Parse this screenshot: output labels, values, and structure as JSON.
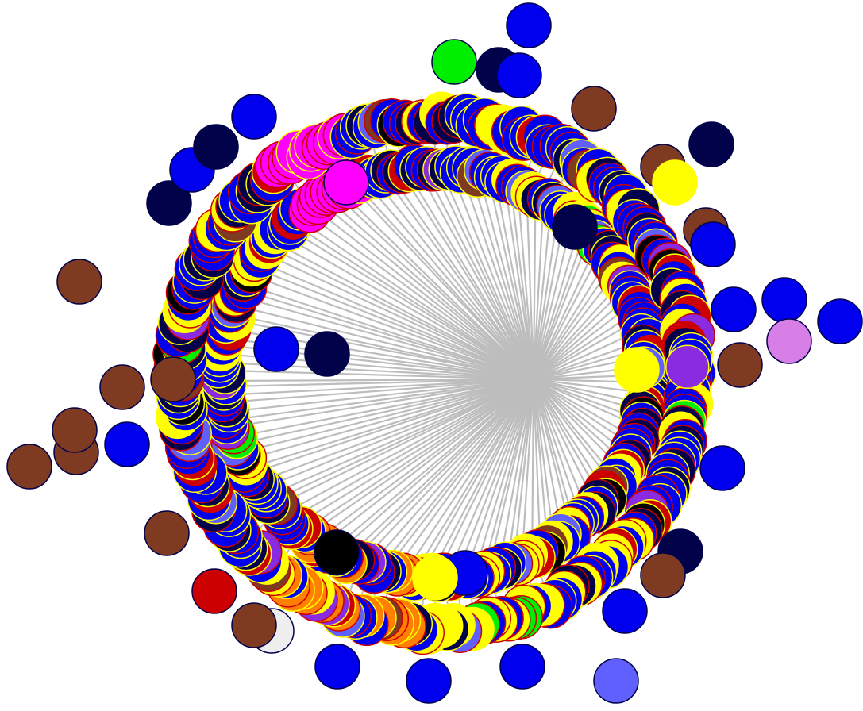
{
  "diagram": {
    "type": "radial-tree",
    "edge_color": "#bdbdbd",
    "palette": {
      "blue": "#0000ee",
      "navy": "#02024a",
      "yellow": "#ffff00",
      "red": "#cc0000",
      "brown": "#7f3a22",
      "magenta": "#ff00ff",
      "green": "#00ee00",
      "orange": "#ff7f00",
      "black": "#000000",
      "purple": "#8a2be2",
      "light-blue": "#6060ff",
      "violet": "#d77fe6",
      "white-gray": "#eeeeee"
    },
    "dominant_node_color": "blue",
    "labels_shown": false
  }
}
